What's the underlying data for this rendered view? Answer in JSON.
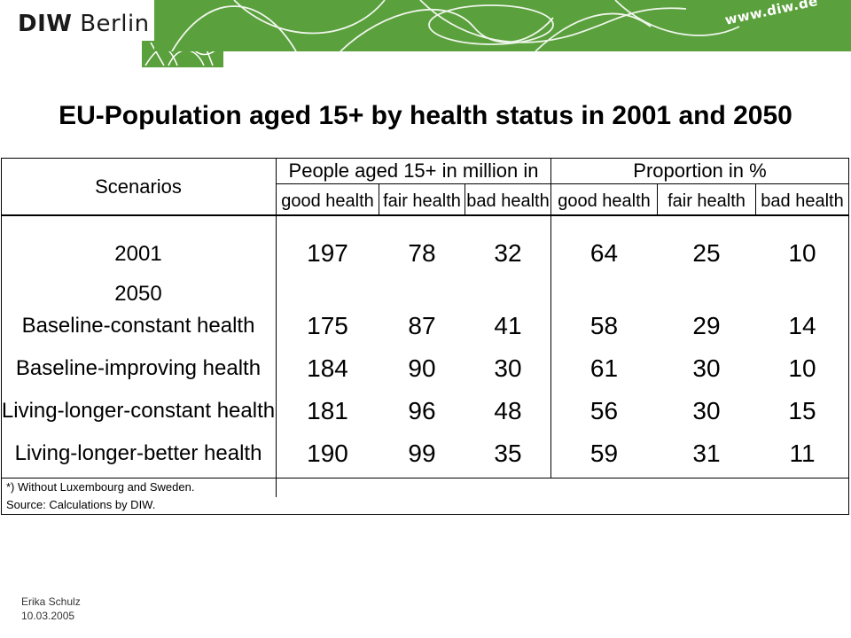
{
  "header": {
    "logo_bold": "DIW",
    "logo_regular": "Berlin",
    "url": "www.diw.de",
    "brand_color": "#5aa03c"
  },
  "title": "EU-Population aged 15+ by health status in 2001 and 2050",
  "table": {
    "scenarios_header": "Scenarios",
    "group1": "People aged 15+ in million in",
    "group2": "Proportion in %",
    "subheaders": [
      "good health",
      "fair health",
      "bad health",
      "good health",
      "fair health",
      "bad health"
    ],
    "rows": [
      {
        "label": "2001",
        "values": [
          "197",
          "78",
          "32",
          "64",
          "25",
          "10"
        ]
      },
      {
        "label": "2050",
        "values": [
          "",
          "",
          "",
          "",
          "",
          ""
        ]
      },
      {
        "label": "Baseline-constant health",
        "values": [
          "175",
          "87",
          "41",
          "58",
          "29",
          "14"
        ]
      },
      {
        "label": "Baseline-improving health",
        "values": [
          "184",
          "90",
          "30",
          "61",
          "30",
          "10"
        ]
      },
      {
        "label": "Living-longer-constant health",
        "values": [
          "181",
          "96",
          "48",
          "56",
          "30",
          "15"
        ]
      },
      {
        "label": "Living-longer-better health",
        "values": [
          "190",
          "99",
          "35",
          "59",
          "31",
          "11"
        ]
      }
    ],
    "note1": "*) Without Luxembourg and Sweden.",
    "note2": "Source: Calculations by DIW."
  },
  "footer": {
    "author": "Erika Schulz",
    "date": "10.03.2005"
  }
}
